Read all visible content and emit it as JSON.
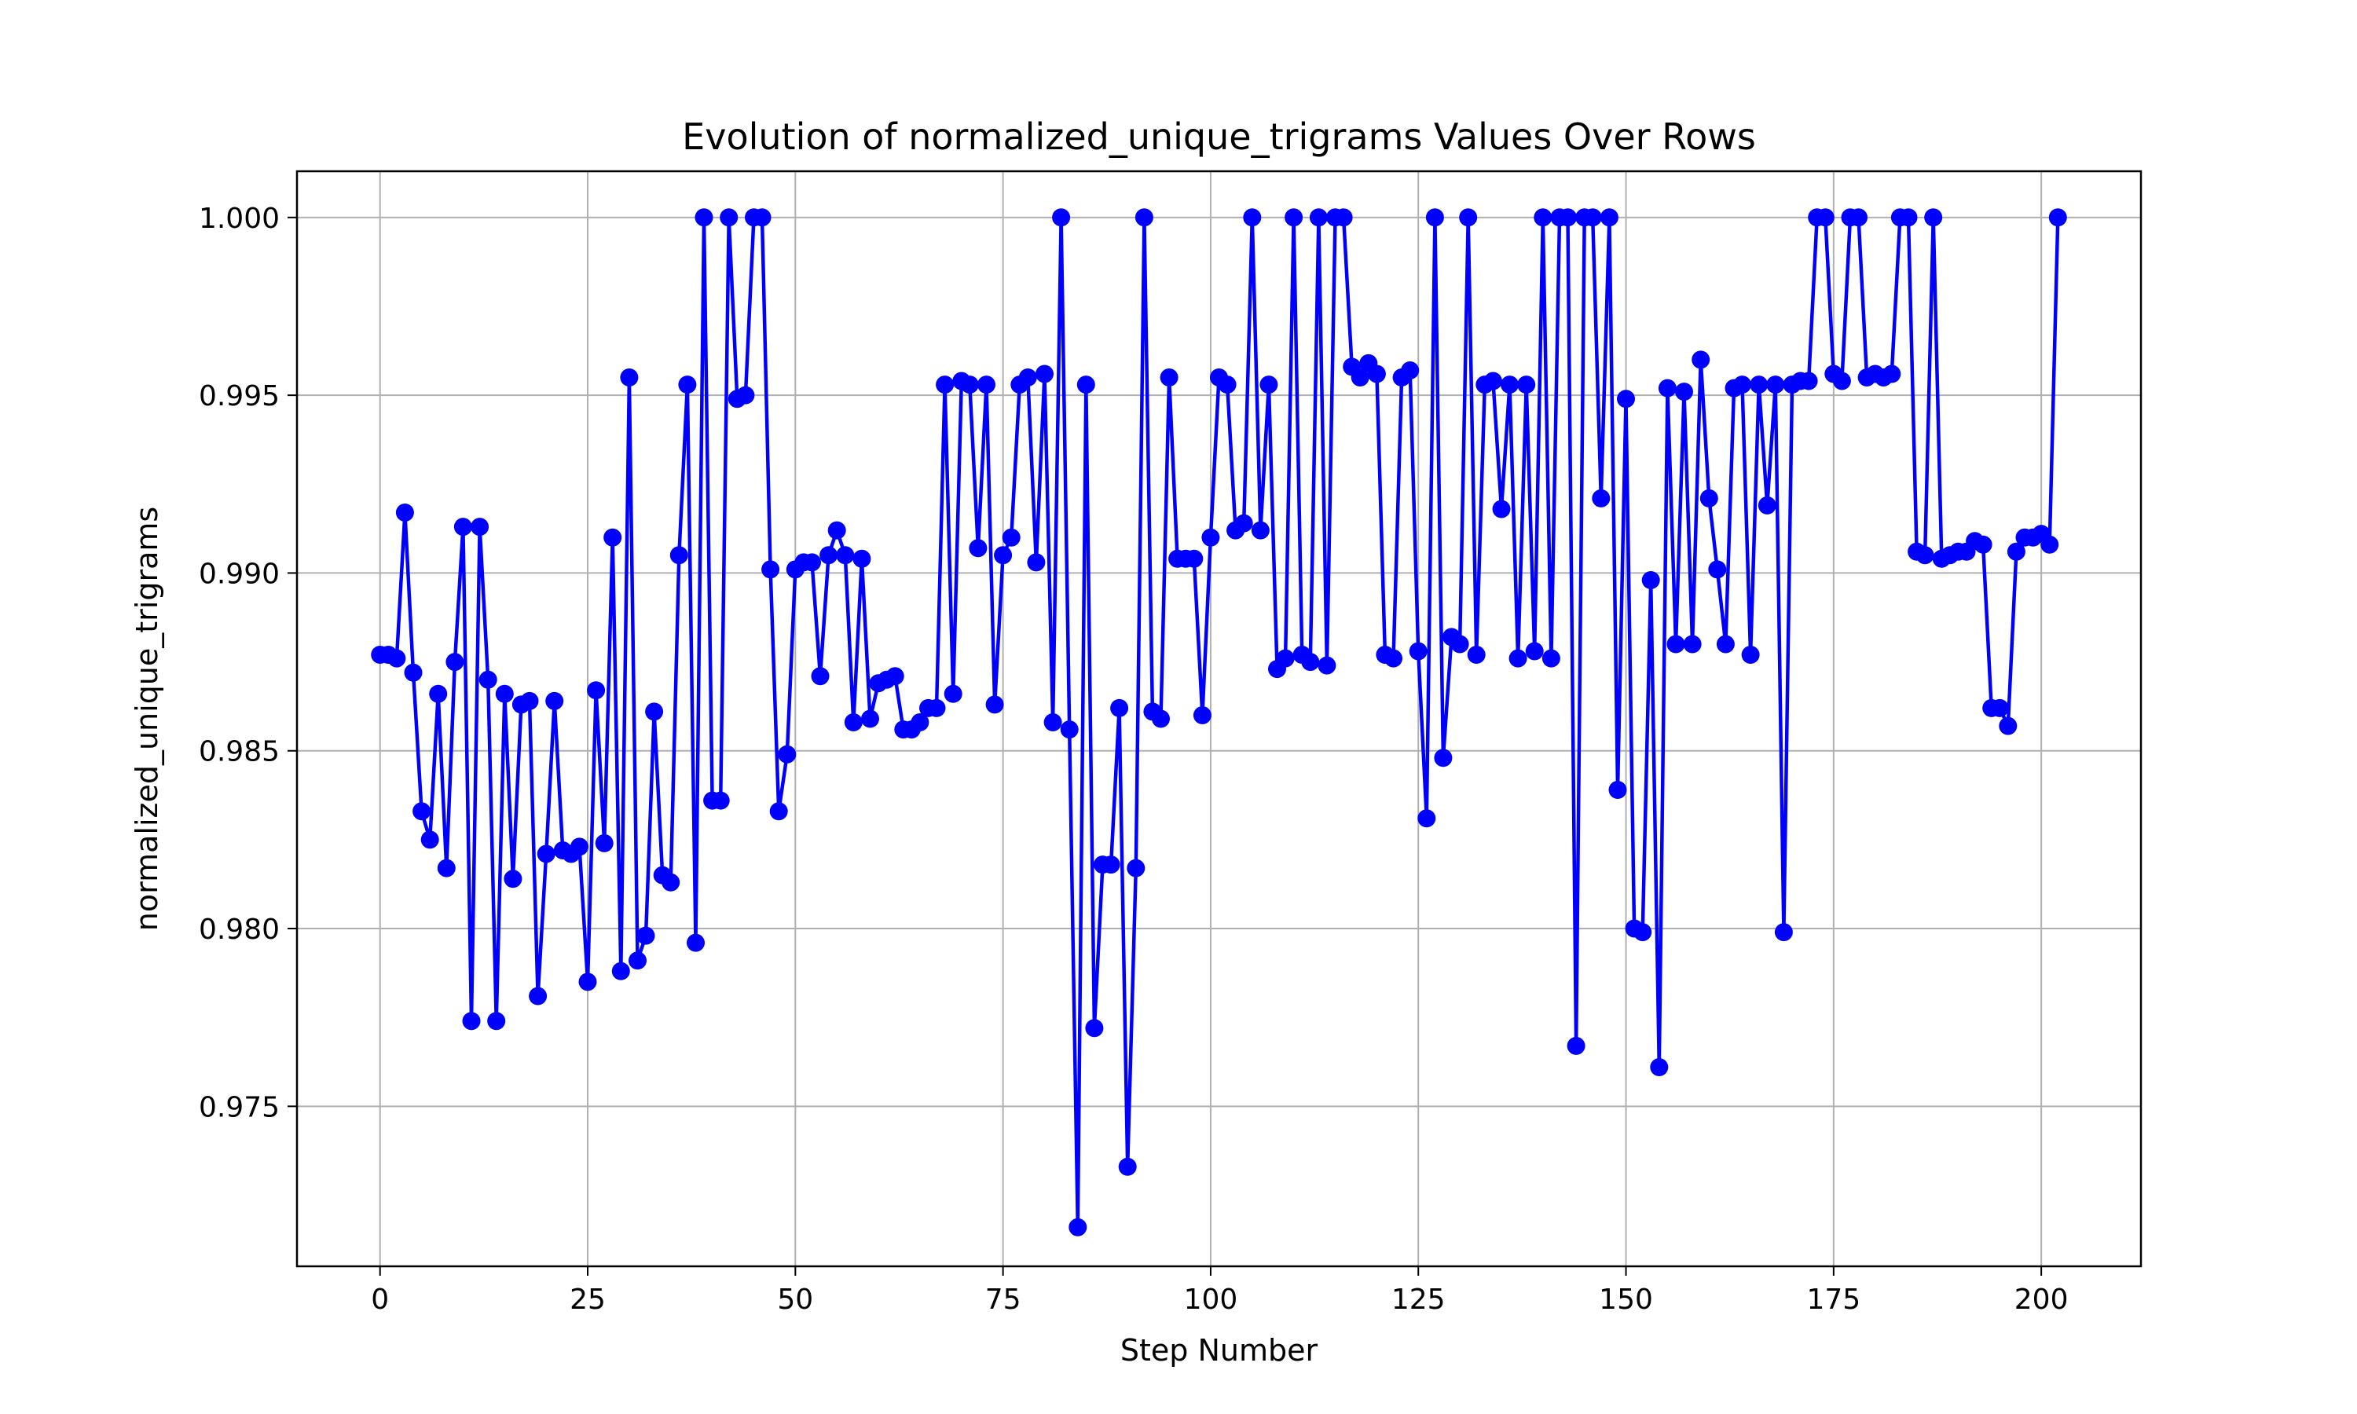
{
  "chart_data": {
    "type": "line",
    "title": "Evolution of normalized_unique_trigrams Values Over Rows",
    "xlabel": "Step Number",
    "ylabel": "normalized_unique_trigrams",
    "xlim": [
      -10,
      212
    ],
    "ylim": [
      0.9705,
      1.0013
    ],
    "x_ticks": [
      0,
      25,
      50,
      75,
      100,
      125,
      150,
      175,
      200
    ],
    "x_tick_labels": [
      "0",
      "25",
      "50",
      "75",
      "100",
      "125",
      "150",
      "175",
      "200"
    ],
    "y_ticks": [
      0.975,
      0.98,
      0.985,
      0.99,
      0.995,
      1.0
    ],
    "y_tick_labels": [
      "0.975",
      "0.980",
      "0.985",
      "0.990",
      "0.995",
      "1.000"
    ],
    "grid": true,
    "colors": {
      "series": "#0000ff",
      "grid": "#b0b0b0",
      "axes": "#000000"
    },
    "series": [
      {
        "marker": "circle",
        "x_start": 0,
        "x_step": 1,
        "values": [
          0.9877,
          0.9877,
          0.9876,
          0.9917,
          0.9872,
          0.9833,
          0.9825,
          0.9866,
          0.9817,
          0.9875,
          0.9913,
          0.9774,
          0.9913,
          0.987,
          0.9774,
          0.9866,
          0.9814,
          0.9863,
          0.9864,
          0.9781,
          0.9821,
          0.9864,
          0.9822,
          0.9821,
          0.9823,
          0.9785,
          0.9867,
          0.9824,
          0.991,
          0.9788,
          0.9955,
          0.9791,
          0.9798,
          0.9861,
          0.9815,
          0.9813,
          0.9905,
          0.9953,
          0.9796,
          1.0,
          0.9836,
          0.9836,
          1.0,
          0.9949,
          0.995,
          1.0,
          1.0,
          0.9901,
          0.9833,
          0.9849,
          0.9901,
          0.9903,
          0.9903,
          0.9871,
          0.9905,
          0.9912,
          0.9905,
          0.9858,
          0.9904,
          0.9859,
          0.9869,
          0.987,
          0.9871,
          0.9856,
          0.9856,
          0.9858,
          0.9862,
          0.9862,
          0.9953,
          0.9866,
          0.9954,
          0.9953,
          0.9907,
          0.9953,
          0.9863,
          0.9905,
          0.991,
          0.9953,
          0.9955,
          0.9903,
          0.9956,
          0.9858,
          1.0,
          0.9856,
          0.9716,
          0.9953,
          0.9772,
          0.9818,
          0.9818,
          0.9862,
          0.9733,
          0.9817,
          1.0,
          0.9861,
          0.9859,
          0.9955,
          0.9904,
          0.9904,
          0.9904,
          0.986,
          0.991,
          0.9955,
          0.9953,
          0.9912,
          0.9914,
          1.0,
          0.9912,
          0.9953,
          0.9873,
          0.9876,
          1.0,
          0.9877,
          0.9875,
          1.0,
          0.9874,
          1.0,
          1.0,
          0.9958,
          0.9955,
          0.9959,
          0.9956,
          0.9877,
          0.9876,
          0.9955,
          0.9957,
          0.9878,
          0.9831,
          1.0,
          0.9848,
          0.9882,
          0.988,
          1.0,
          0.9877,
          0.9953,
          0.9954,
          0.9918,
          0.9953,
          0.9876,
          0.9953,
          0.9878,
          1.0,
          0.9876,
          1.0,
          1.0,
          0.9767,
          1.0,
          1.0,
          0.9921,
          1.0,
          0.9839,
          0.9949,
          0.98,
          0.9799,
          0.9898,
          0.9761,
          0.9952,
          0.988,
          0.9951,
          0.988,
          0.996,
          0.9921,
          0.9901,
          0.988,
          0.9952,
          0.9953,
          0.9877,
          0.9953,
          0.9919,
          0.9953,
          0.9799,
          0.9953,
          0.9954,
          0.9954,
          1.0,
          1.0,
          0.9956,
          0.9954,
          1.0,
          1.0,
          0.9955,
          0.9956,
          0.9955,
          0.9956,
          1.0,
          1.0,
          0.9906,
          0.9905,
          1.0,
          0.9904,
          0.9905,
          0.9906,
          0.9906,
          0.9909,
          0.9908,
          0.9862,
          0.9862,
          0.9857,
          0.9906,
          0.991,
          0.991,
          0.9911,
          0.9908,
          1.0
        ]
      }
    ]
  }
}
